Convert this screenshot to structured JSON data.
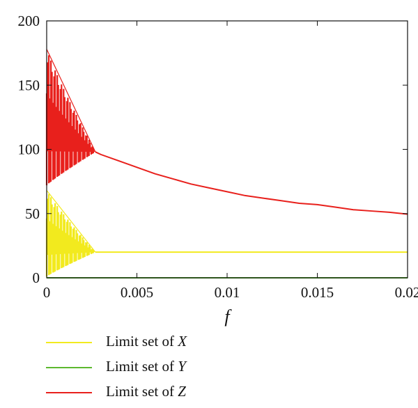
{
  "chart_data": {
    "type": "line",
    "xlabel": "f",
    "ylabel": "",
    "xlim": [
      0,
      0.02
    ],
    "ylim": [
      0,
      200
    ],
    "xticks": [
      "0",
      "0.005",
      "0.01",
      "0.015",
      "0.02"
    ],
    "yticks": [
      "0",
      "50",
      "100",
      "150",
      "200"
    ],
    "xtick_values": [
      0,
      0.005,
      0.01,
      0.015,
      0.02
    ],
    "ytick_values": [
      0,
      50,
      100,
      150,
      200
    ],
    "grid": false,
    "legend_position": "below",
    "series": [
      {
        "name": "Limit set of X",
        "label_prefix": "Limit set of ",
        "label_var": "X",
        "color": "#f2ea1e",
        "oscillation_region": {
          "x_end": 0.0027,
          "upper_start": 68,
          "lower_start": 1
        },
        "x": [
          0.0027,
          0.005,
          0.01,
          0.015,
          0.02
        ],
        "y": [
          20,
          20,
          20,
          20,
          20
        ]
      },
      {
        "name": "Limit set of Y",
        "label_prefix": "Limit set of ",
        "label_var": "Y",
        "color": "#5cb82e",
        "x": [
          0,
          0.005,
          0.01,
          0.015,
          0.02
        ],
        "y": [
          0,
          0,
          0,
          0,
          0
        ]
      },
      {
        "name": "Limit set of Z",
        "label_prefix": "Limit set of ",
        "label_var": "Z",
        "color": "#e8201c",
        "oscillation_region": {
          "x_end": 0.0027,
          "upper_start": 178,
          "lower_start": 72
        },
        "x": [
          0.0027,
          0.003,
          0.004,
          0.005,
          0.006,
          0.007,
          0.008,
          0.009,
          0.01,
          0.011,
          0.012,
          0.013,
          0.014,
          0.015,
          0.016,
          0.017,
          0.018,
          0.019,
          0.02
        ],
        "y": [
          98,
          96,
          91,
          86,
          81,
          77,
          73,
          70,
          67,
          64,
          62,
          60,
          58,
          57,
          55,
          53,
          52,
          51,
          49.5
        ]
      }
    ]
  }
}
